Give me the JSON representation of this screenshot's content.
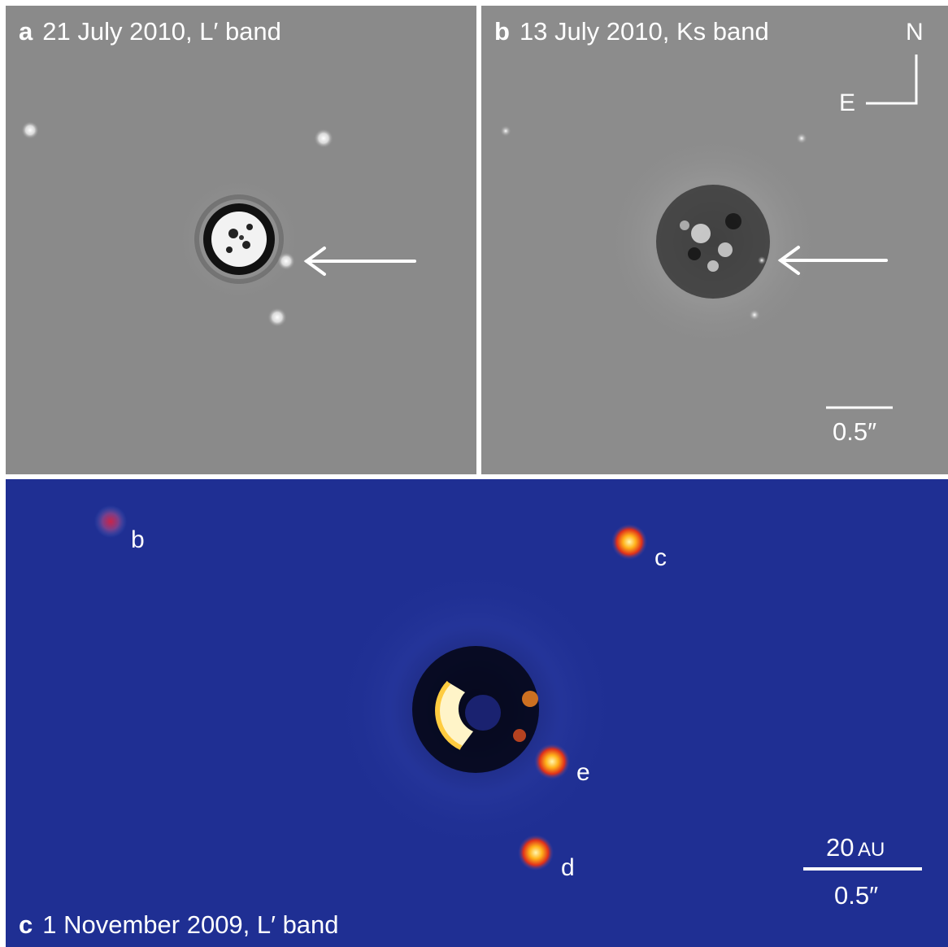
{
  "panels": {
    "a": {
      "letter": "a",
      "caption": "21 July 2010, L′ band"
    },
    "b": {
      "letter": "b",
      "caption": "13 July 2010, Ks band",
      "compass": {
        "north": "N",
        "east": "E"
      },
      "scale_bar": "0.5″"
    },
    "c": {
      "letter": "c",
      "caption": "1 November 2009, L′ band",
      "scale_physical_value": "20",
      "scale_physical_unit": "AU",
      "scale_angular": "0.5″",
      "planets": [
        "b",
        "c",
        "e",
        "d"
      ]
    }
  },
  "colors": {
    "panel_gray": "#8a8a8a",
    "panel_blue": "#1f2f93",
    "planet_hot": "#ffb21a",
    "planet_b": "#b43a6a",
    "text": "#ffffff"
  }
}
